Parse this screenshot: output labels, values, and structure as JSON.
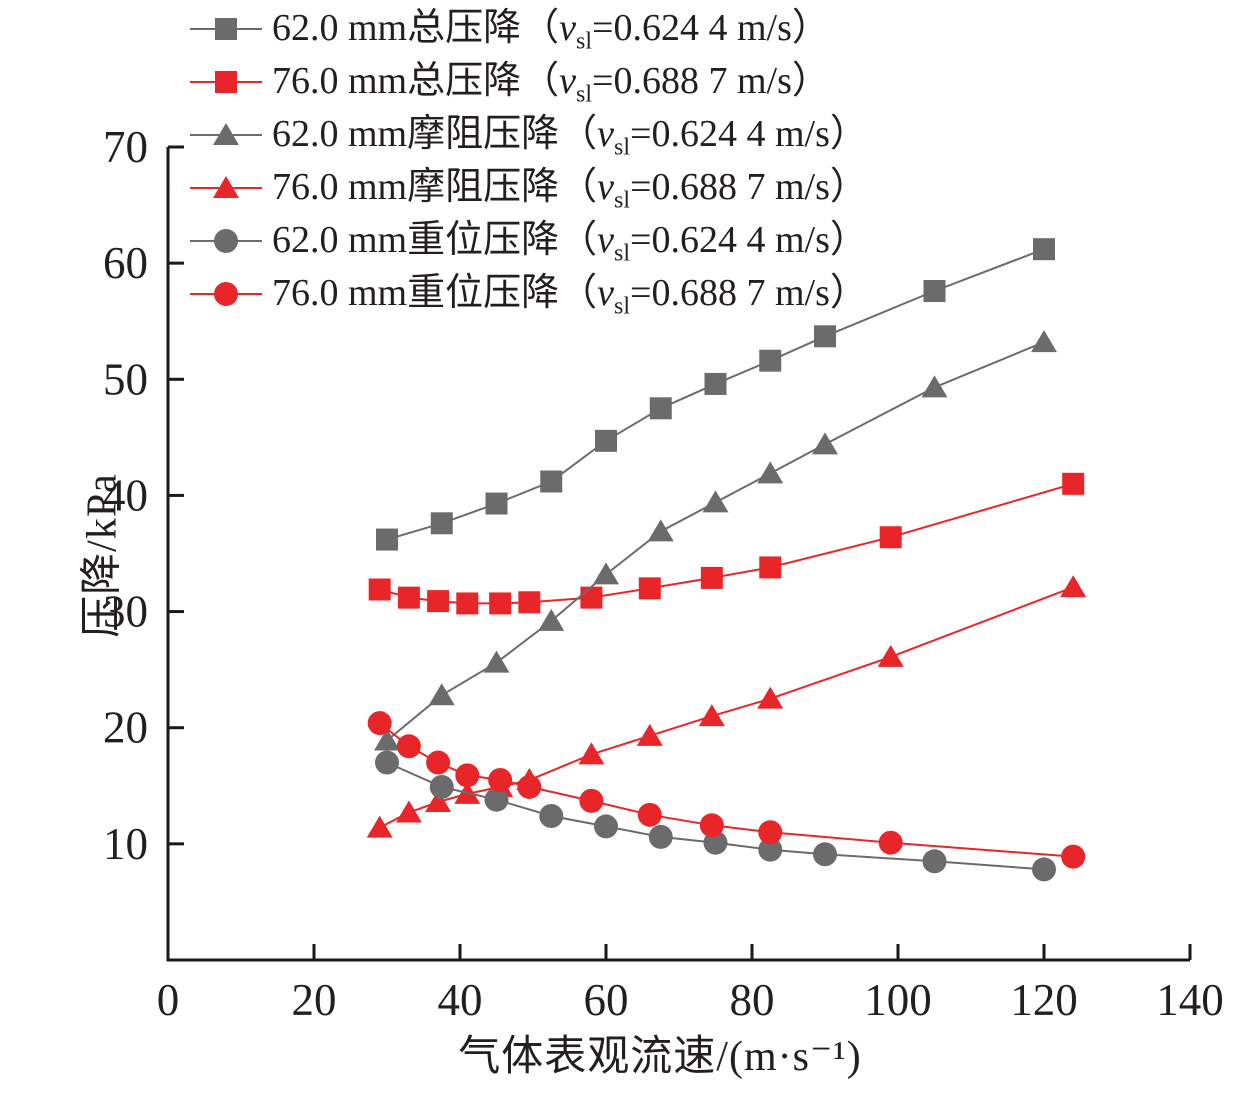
{
  "figure_name": "pressure-drop-vs-gas-velocity-chart",
  "axes": {
    "x_label": "气体表观流速/(m·s⁻¹)",
    "y_label": "压降/kPa",
    "x_ticks": [
      0,
      20,
      40,
      60,
      80,
      100,
      120,
      140
    ],
    "y_ticks": [
      10,
      20,
      30,
      40,
      50,
      60,
      70
    ]
  },
  "colors": {
    "gray_series": "#6b6b6b",
    "red_series": "#e8262a",
    "axis": "#1a1a1a",
    "text": "#231f20"
  },
  "legend": {
    "open": "（",
    "var_symbol": "v",
    "var_sub": "sl",
    "close": "）",
    "items": [
      {
        "name": "62.0 mm总压降",
        "value": "=0.624 4 m/s",
        "series": 0
      },
      {
        "name": "76.0 mm总压降",
        "value": "=0.688 7 m/s",
        "series": 1
      },
      {
        "name": "62.0 mm摩阻压降",
        "value": "=0.624 4 m/s",
        "series": 2
      },
      {
        "name": "76.0 mm摩阻压降",
        "value": "=0.688 7 m/s",
        "series": 3
      },
      {
        "name": "62.0 mm重位压降",
        "value": "=0.624 4 m/s",
        "series": 4
      },
      {
        "name": "76.0 mm重位压降",
        "value": "=0.688 7 m/s",
        "series": 5
      }
    ]
  },
  "chart_data": {
    "type": "line",
    "title": "",
    "xlabel": "气体表观流速/(m·s⁻¹)",
    "ylabel": "压降/kPa",
    "xlim": [
      0,
      140
    ],
    "ylim": [
      0,
      70
    ],
    "x_ticks": [
      0,
      20,
      40,
      60,
      80,
      100,
      120,
      140
    ],
    "y_ticks": [
      10,
      20,
      30,
      40,
      50,
      60,
      70
    ],
    "grid": false,
    "legend_position": "top-left",
    "series": [
      {
        "name": "62.0 mm总压降（vsl=0.624 4 m/s）",
        "marker": "square",
        "color": "#6b6b6b",
        "x": [
          30,
          37.5,
          45,
          52.5,
          60,
          67.5,
          75,
          82.5,
          90,
          105,
          120
        ],
        "y": [
          36.2,
          37.6,
          39.3,
          41.2,
          44.7,
          47.5,
          49.6,
          51.6,
          53.7,
          57.6,
          61.2
        ]
      },
      {
        "name": "76.0 mm总压降（vsl=0.688 7 m/s）",
        "marker": "square",
        "color": "#e8262a",
        "x": [
          29,
          33,
          37,
          41,
          45.5,
          49.5,
          58,
          66,
          74.5,
          82.5,
          99,
          124
        ],
        "y": [
          31.9,
          31.2,
          30.9,
          30.7,
          30.7,
          30.8,
          31.2,
          32.0,
          32.9,
          33.8,
          36.4,
          41.0
        ]
      },
      {
        "name": "62.0 mm摩阻压降（vsl=0.624 4 m/s）",
        "marker": "triangle",
        "color": "#6b6b6b",
        "x": [
          30,
          37.5,
          45,
          52.5,
          60,
          67.5,
          75,
          82.5,
          90,
          105,
          120
        ],
        "y": [
          18.9,
          22.8,
          25.6,
          29.2,
          33.2,
          36.9,
          39.4,
          41.9,
          44.4,
          49.3,
          53.2
        ]
      },
      {
        "name": "76.0 mm摩阻压降（vsl=0.688 7 m/s）",
        "marker": "triangle",
        "color": "#e8262a",
        "x": [
          29,
          33,
          37,
          41,
          45.5,
          49.5,
          58,
          66,
          74.5,
          82.5,
          99,
          124
        ],
        "y": [
          11.4,
          12.7,
          13.6,
          14.3,
          14.9,
          15.5,
          17.7,
          19.3,
          21.0,
          22.5,
          26.1,
          32.1
        ]
      },
      {
        "name": "62.0 mm重位压降（vsl=0.624 4 m/s）",
        "marker": "circle",
        "color": "#6b6b6b",
        "x": [
          30,
          37.5,
          45,
          52.5,
          60,
          67.5,
          75,
          82.5,
          90,
          105,
          120
        ],
        "y": [
          17.0,
          14.9,
          13.8,
          12.4,
          11.5,
          10.6,
          10.1,
          9.5,
          9.1,
          8.5,
          7.8
        ]
      },
      {
        "name": "76.0 mm重位压降（vsl=0.688 7 m/s）",
        "marker": "circle",
        "color": "#e8262a",
        "x": [
          29,
          33,
          37,
          41,
          45.5,
          49.5,
          58,
          66,
          74.5,
          82.5,
          99,
          124
        ],
        "y": [
          20.4,
          18.4,
          17.0,
          15.9,
          15.5,
          14.9,
          13.7,
          12.5,
          11.6,
          11.0,
          10.1,
          8.9
        ]
      }
    ]
  }
}
